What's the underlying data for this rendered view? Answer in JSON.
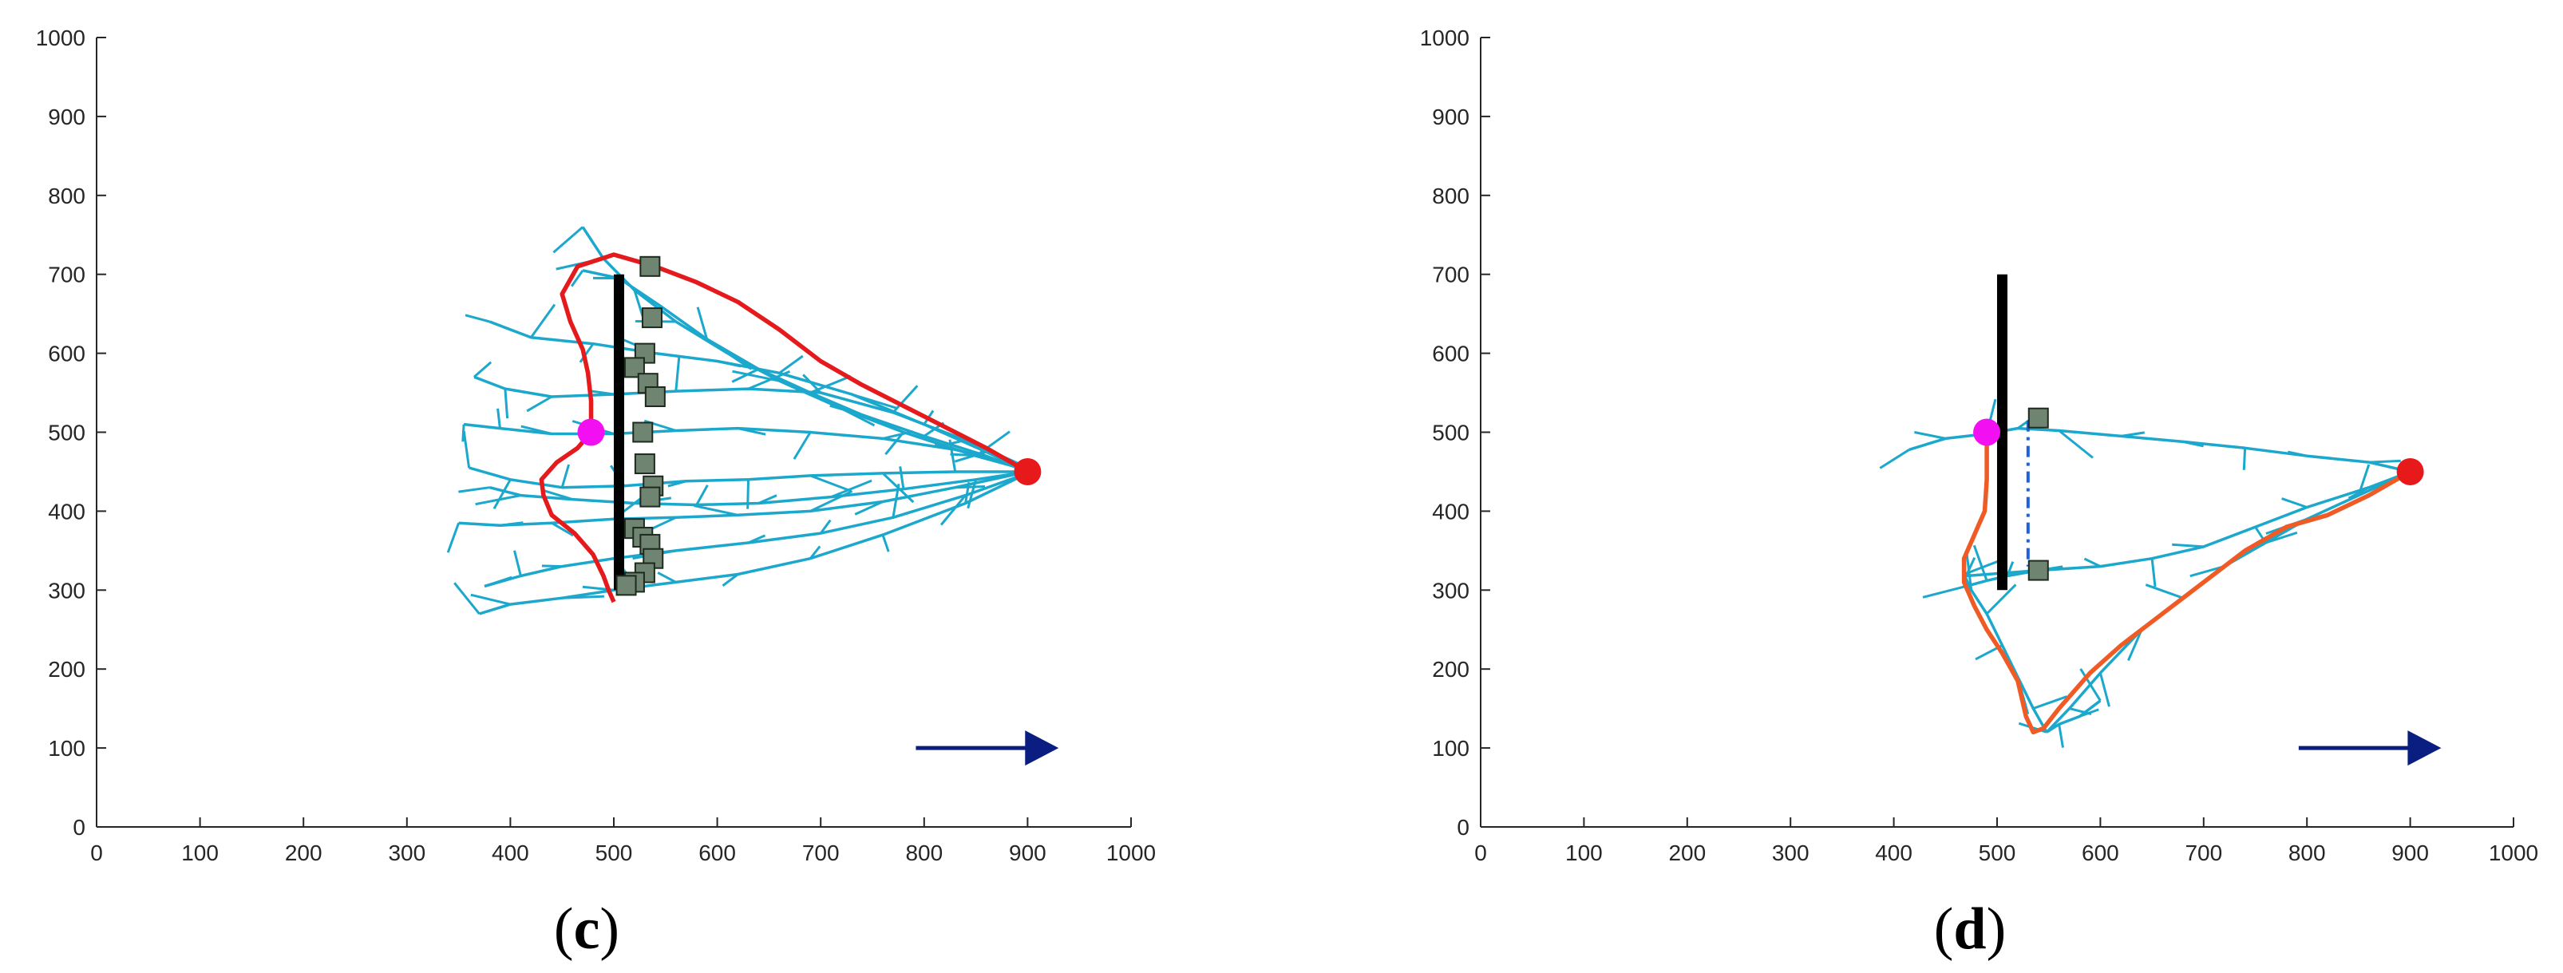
{
  "figure": {
    "panels": [
      "(c)",
      "(d)"
    ]
  },
  "colors": {
    "tree": "#1BA8CC",
    "path_c": "#E41A1C",
    "path_d": "#F05A24",
    "obstacle": "#000000",
    "start": "#F20FF2",
    "goal": "#E8191B",
    "node": "#6F8571",
    "node_edge": "#1E2A1E",
    "arrow": "#0A1E82",
    "dashed": "#2060D8",
    "axis": "#262626"
  },
  "chart_data": [
    {
      "type": "scatter",
      "panel_label": "(c)",
      "panel_letter": "c",
      "xlim": [
        0,
        1000
      ],
      "ylim": [
        0,
        1000
      ],
      "xticks": [
        0,
        100,
        200,
        300,
        400,
        500,
        600,
        700,
        800,
        900,
        1000
      ],
      "yticks": [
        0,
        100,
        200,
        300,
        400,
        500,
        600,
        700,
        800,
        900,
        1000
      ],
      "grid": false,
      "start": [
        478,
        500
      ],
      "goal": [
        900,
        450
      ],
      "obstacle": [
        [
          505,
          300
        ],
        [
          505,
          700
        ]
      ],
      "arrow": [
        [
          792,
          100
        ],
        [
          930,
          100
        ]
      ],
      "sampled_nodes": [
        [
          535,
          710
        ],
        [
          537,
          645
        ],
        [
          530,
          600
        ],
        [
          520,
          582
        ],
        [
          533,
          562
        ],
        [
          540,
          545
        ],
        [
          528,
          500
        ],
        [
          530,
          460
        ],
        [
          538,
          432
        ],
        [
          535,
          418
        ],
        [
          520,
          378
        ],
        [
          528,
          367
        ],
        [
          535,
          358
        ],
        [
          538,
          340
        ],
        [
          530,
          322
        ],
        [
          520,
          310
        ],
        [
          512,
          306
        ]
      ],
      "tree_fans": [
        {
          "branches": [
            [
              [
                900,
                450
              ],
              [
                860,
                470
              ],
              [
                800,
                495
              ],
              [
                740,
                522
              ],
              [
                690,
                550
              ],
              [
                640,
                580
              ],
              [
                590,
                618
              ],
              [
                545,
                660
              ],
              [
                505,
                695
              ],
              [
                470,
                705
              ]
            ],
            [
              [
                900,
                450
              ],
              [
                860,
                475
              ],
              [
                800,
                510
              ],
              [
                730,
                548
              ],
              [
                660,
                575
              ],
              [
                600,
                590
              ],
              [
                540,
                600
              ],
              [
                480,
                612
              ],
              [
                420,
                620
              ],
              [
                380,
                640
              ]
            ],
            [
              [
                900,
                455
              ],
              [
                840,
                490
              ],
              [
                770,
                525
              ],
              [
                700,
                550
              ],
              [
                630,
                555
              ],
              [
                560,
                552
              ],
              [
                500,
                548
              ],
              [
                440,
                545
              ],
              [
                395,
                555
              ],
              [
                365,
                570
              ]
            ],
            [
              [
                900,
                455
              ],
              [
                830,
                478
              ],
              [
                760,
                492
              ],
              [
                690,
                500
              ],
              [
                620,
                505
              ],
              [
                560,
                502
              ],
              [
                500,
                498
              ],
              [
                440,
                498
              ],
              [
                390,
                505
              ],
              [
                355,
                510
              ]
            ],
            [
              [
                900,
                450
              ],
              [
                830,
                450
              ],
              [
                760,
                448
              ],
              [
                690,
                445
              ],
              [
                630,
                440
              ],
              [
                570,
                438
              ],
              [
                510,
                432
              ],
              [
                450,
                430
              ],
              [
                400,
                440
              ],
              [
                360,
                455
              ]
            ],
            [
              [
                900,
                450
              ],
              [
                830,
                430
              ],
              [
                760,
                412
              ],
              [
                690,
                400
              ],
              [
                620,
                395
              ],
              [
                560,
                392
              ],
              [
                500,
                390
              ],
              [
                440,
                385
              ],
              [
                390,
                382
              ],
              [
                350,
                385
              ]
            ],
            [
              [
                900,
                448
              ],
              [
                840,
                420
              ],
              [
                770,
                392
              ],
              [
                700,
                372
              ],
              [
                630,
                360
              ],
              [
                560,
                350
              ],
              [
                500,
                340
              ],
              [
                450,
                330
              ],
              [
                410,
                318
              ],
              [
                375,
                305
              ]
            ],
            [
              [
                900,
                448
              ],
              [
                840,
                410
              ],
              [
                760,
                370
              ],
              [
                690,
                340
              ],
              [
                620,
                320
              ],
              [
                560,
                310
              ],
              [
                500,
                300
              ],
              [
                450,
                290
              ],
              [
                400,
                282
              ],
              [
                370,
                270
              ]
            ],
            [
              [
                900,
                450
              ],
              [
                850,
                440
              ],
              [
                780,
                428
              ],
              [
                710,
                418
              ],
              [
                640,
                410
              ],
              [
                580,
                408
              ],
              [
                520,
                410
              ],
              [
                460,
                415
              ],
              [
                410,
                420
              ],
              [
                380,
                430
              ]
            ],
            [
              [
                900,
                452
              ],
              [
                850,
                470
              ],
              [
                780,
                500
              ],
              [
                720,
                530
              ],
              [
                660,
                565
              ],
              [
                610,
                600
              ],
              [
                560,
                640
              ],
              [
                520,
                680
              ],
              [
                490,
                720
              ],
              [
                470,
                760
              ]
            ]
          ]
        }
      ],
      "path": [
        [
          900,
          450
        ],
        [
          860,
          480
        ],
        [
          800,
          520
        ],
        [
          740,
          560
        ],
        [
          700,
          590
        ],
        [
          660,
          630
        ],
        [
          620,
          665
        ],
        [
          580,
          690
        ],
        [
          540,
          710
        ],
        [
          500,
          725
        ],
        [
          465,
          710
        ],
        [
          450,
          675
        ],
        [
          458,
          640
        ],
        [
          470,
          605
        ],
        [
          475,
          575
        ],
        [
          478,
          540
        ],
        [
          478,
          500
        ],
        [
          465,
          480
        ],
        [
          445,
          462
        ],
        [
          430,
          440
        ],
        [
          432,
          420
        ],
        [
          440,
          395
        ],
        [
          462,
          372
        ],
        [
          480,
          345
        ],
        [
          490,
          318
        ],
        [
          495,
          300
        ],
        [
          500,
          285
        ]
      ]
    },
    {
      "type": "scatter",
      "panel_label": "(d)",
      "panel_letter": "d",
      "xlim": [
        0,
        1000
      ],
      "ylim": [
        0,
        1000
      ],
      "xticks": [
        0,
        100,
        200,
        300,
        400,
        500,
        600,
        700,
        800,
        900,
        1000
      ],
      "yticks": [
        0,
        100,
        200,
        300,
        400,
        500,
        600,
        700,
        800,
        900,
        1000
      ],
      "grid": false,
      "start": [
        490,
        500
      ],
      "goal": [
        900,
        450
      ],
      "obstacle": [
        [
          505,
          300
        ],
        [
          505,
          700
        ]
      ],
      "arrow": [
        [
          792,
          100
        ],
        [
          930,
          100
        ]
      ],
      "sampled_nodes": [
        [
          540,
          518
        ],
        [
          540,
          325
        ]
      ],
      "dashed_segment": [
        [
          530,
          515
        ],
        [
          530,
          330
        ]
      ],
      "tree_fans": [
        {
          "branches": [
            [
              [
                900,
                450
              ],
              [
                860,
                462
              ],
              [
                800,
                470
              ],
              [
                740,
                480
              ],
              [
                680,
                488
              ],
              [
                620,
                495
              ],
              [
                560,
                502
              ],
              [
                520,
                505
              ]
            ],
            [
              [
                900,
                450
              ],
              [
                860,
                430
              ],
              [
                800,
                405
              ],
              [
                750,
                380
              ],
              [
                700,
                355
              ],
              [
                650,
                340
              ],
              [
                600,
                330
              ],
              [
                540,
                325
              ],
              [
                470,
                318
              ]
            ],
            [
              [
                900,
                450
              ],
              [
                850,
                420
              ],
              [
                800,
                390
              ],
              [
                760,
                360
              ],
              [
                720,
                330
              ],
              [
                680,
                290
              ],
              [
                640,
                250
              ],
              [
                600,
                195
              ],
              [
                570,
                150
              ],
              [
                548,
                120
              ]
            ],
            [
              [
                520,
                505
              ],
              [
                490,
                498
              ],
              [
                450,
                492
              ],
              [
                415,
                478
              ]
            ],
            [
              [
                540,
                325
              ],
              [
                510,
                318
              ],
              [
                490,
                312
              ],
              [
                470,
                305
              ]
            ],
            [
              [
                548,
                120
              ],
              [
                535,
                150
              ],
              [
                520,
                190
              ],
              [
                505,
                230
              ],
              [
                490,
                270
              ],
              [
                475,
                300
              ],
              [
                468,
                320
              ]
            ],
            [
              [
                548,
                120
              ],
              [
                560,
                130
              ],
              [
                580,
                140
              ],
              [
                600,
                160
              ]
            ]
          ]
        }
      ],
      "path": [
        [
          900,
          450
        ],
        [
          860,
          420
        ],
        [
          820,
          395
        ],
        [
          780,
          380
        ],
        [
          740,
          350
        ],
        [
          700,
          310
        ],
        [
          660,
          270
        ],
        [
          620,
          230
        ],
        [
          590,
          195
        ],
        [
          560,
          150
        ],
        [
          545,
          125
        ],
        [
          535,
          120
        ],
        [
          528,
          140
        ],
        [
          520,
          185
        ],
        [
          505,
          220
        ],
        [
          490,
          250
        ],
        [
          478,
          280
        ],
        [
          468,
          310
        ],
        [
          468,
          340
        ],
        [
          478,
          370
        ],
        [
          488,
          400
        ],
        [
          490,
          440
        ],
        [
          490,
          470
        ],
        [
          490,
          500
        ]
      ]
    }
  ]
}
